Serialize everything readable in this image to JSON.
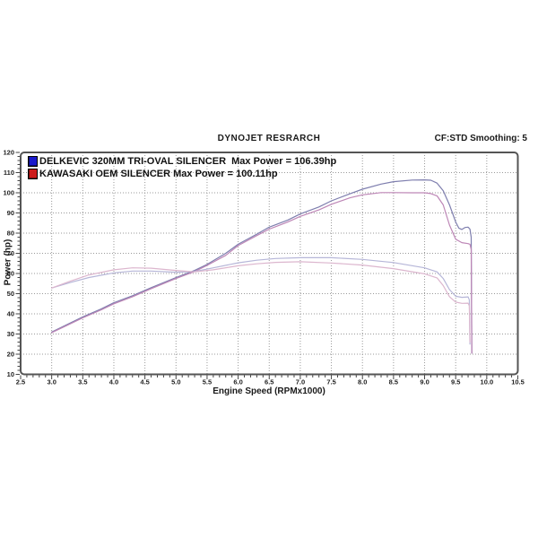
{
  "header": {
    "title": "DYNOJET RESRARCH",
    "smoothing_note": "CF:STD Smoothing: 5"
  },
  "legend": [
    {
      "label": "DELKEVIC 320MM TRI-OVAL SILENCER  Max Power = 106.39hp",
      "swatch_color": "#1a1acc"
    },
    {
      "label": "KAWASAKI OEM SILENCER Max Power = 100.11hp",
      "swatch_color": "#cc1a1a"
    }
  ],
  "chart_data": {
    "type": "line",
    "title": "DYNOJET RESRARCH",
    "xlabel": "Engine Speed (RPMx1000)",
    "ylabel": "Power (hp)",
    "xlim": [
      2.5,
      10.5
    ],
    "ylim": [
      10,
      120
    ],
    "x_major_step": 0.5,
    "x_minor_step": 0.1,
    "y_major_step": 10,
    "y_minor_step": 2,
    "x_tick_labels": [
      "2.5",
      "3.0",
      "3.5",
      "4.0",
      "4.5",
      "5.0",
      "5.5",
      "6.0",
      "6.5",
      "7.0",
      "7.5",
      "8.0",
      "8.5",
      "9.0",
      "9.5",
      "10.0",
      "10.5"
    ],
    "y_tick_labels": [
      "10",
      "20",
      "30",
      "40",
      "50",
      "60",
      "70",
      "80",
      "90",
      "100",
      "110",
      "120"
    ],
    "grid": "dotted",
    "legend_position": "top-left-inside",
    "grid_color": "#999999",
    "frame_color": "#555555",
    "series": [
      {
        "name": "DELKEVIC 320MM TRI-OVAL SILENCER",
        "trace": "power",
        "max_power_hp": 106.39,
        "color": "#7e7eae",
        "points": [
          [
            3.0,
            31
          ],
          [
            3.2,
            34
          ],
          [
            3.5,
            38.5
          ],
          [
            3.8,
            42.5
          ],
          [
            4.0,
            45.5
          ],
          [
            4.3,
            49
          ],
          [
            4.6,
            53
          ],
          [
            5.0,
            58
          ],
          [
            5.3,
            61.5
          ],
          [
            5.5,
            64.5
          ],
          [
            5.8,
            70
          ],
          [
            6.0,
            74.5
          ],
          [
            6.3,
            79.5
          ],
          [
            6.5,
            83
          ],
          [
            6.8,
            86.5
          ],
          [
            7.0,
            89.5
          ],
          [
            7.3,
            93
          ],
          [
            7.5,
            96
          ],
          [
            7.8,
            99.5
          ],
          [
            8.0,
            101.8
          ],
          [
            8.3,
            104.3
          ],
          [
            8.5,
            105.5
          ],
          [
            8.8,
            106.3
          ],
          [
            9.0,
            106.4
          ],
          [
            9.1,
            106.2
          ],
          [
            9.2,
            104.8
          ],
          [
            9.3,
            101
          ],
          [
            9.4,
            94
          ],
          [
            9.5,
            85.5
          ],
          [
            9.55,
            82.5
          ],
          [
            9.6,
            81.8
          ],
          [
            9.65,
            82.8
          ],
          [
            9.7,
            83
          ],
          [
            9.73,
            82
          ],
          [
            9.75,
            78
          ],
          [
            9.76,
            20.5
          ]
        ]
      },
      {
        "name": "KAWASAKI OEM SILENCER",
        "trace": "power",
        "max_power_hp": 100.11,
        "color": "#bd86b6",
        "points": [
          [
            3.0,
            30.7
          ],
          [
            3.2,
            33.6
          ],
          [
            3.5,
            38
          ],
          [
            3.8,
            42
          ],
          [
            4.0,
            45
          ],
          [
            4.3,
            48.5
          ],
          [
            4.6,
            52.5
          ],
          [
            5.0,
            57.5
          ],
          [
            5.3,
            61
          ],
          [
            5.5,
            64
          ],
          [
            5.8,
            69
          ],
          [
            6.0,
            73.8
          ],
          [
            6.3,
            78.8
          ],
          [
            6.5,
            82
          ],
          [
            6.8,
            85.5
          ],
          [
            7.0,
            88.3
          ],
          [
            7.3,
            91.5
          ],
          [
            7.5,
            94.3
          ],
          [
            7.8,
            97.5
          ],
          [
            8.0,
            99
          ],
          [
            8.3,
            100.1
          ],
          [
            8.5,
            100.1
          ],
          [
            8.8,
            100
          ],
          [
            9.0,
            100
          ],
          [
            9.1,
            99.6
          ],
          [
            9.2,
            98.5
          ],
          [
            9.3,
            94
          ],
          [
            9.4,
            84
          ],
          [
            9.5,
            77
          ],
          [
            9.6,
            75.3
          ],
          [
            9.7,
            74.8
          ],
          [
            9.73,
            74.5
          ],
          [
            9.75,
            72
          ],
          [
            9.76,
            20.5
          ]
        ]
      },
      {
        "name": "DELKEVIC 320MM TRI-OVAL SILENCER",
        "trace": "torque-lower-trace",
        "color": "#b6b6d8",
        "points": [
          [
            3.0,
            52.8
          ],
          [
            3.3,
            55.5
          ],
          [
            3.6,
            58
          ],
          [
            4.0,
            60.3
          ],
          [
            4.3,
            61.2
          ],
          [
            4.6,
            61.2
          ],
          [
            5.0,
            60.6
          ],
          [
            5.3,
            61
          ],
          [
            5.6,
            62.8
          ],
          [
            6.0,
            65.3
          ],
          [
            6.3,
            66.6
          ],
          [
            6.6,
            67.4
          ],
          [
            7.0,
            67.8
          ],
          [
            7.5,
            67.8
          ],
          [
            8.0,
            67
          ],
          [
            8.5,
            65.4
          ],
          [
            9.0,
            62.8
          ],
          [
            9.2,
            60.8
          ],
          [
            9.3,
            57.5
          ],
          [
            9.4,
            52
          ],
          [
            9.5,
            48.7
          ],
          [
            9.6,
            48.2
          ],
          [
            9.7,
            48.4
          ],
          [
            9.72,
            47
          ],
          [
            9.73,
            25
          ]
        ]
      },
      {
        "name": "KAWASAKI OEM SILENCER",
        "trace": "torque-lower-trace",
        "color": "#dcb6ce",
        "points": [
          [
            3.0,
            52.8
          ],
          [
            3.3,
            56.2
          ],
          [
            3.6,
            59.3
          ],
          [
            4.0,
            61.8
          ],
          [
            4.3,
            62.8
          ],
          [
            4.6,
            62.6
          ],
          [
            5.0,
            61.5
          ],
          [
            5.3,
            60.8
          ],
          [
            5.6,
            61.8
          ],
          [
            6.0,
            63.8
          ],
          [
            6.3,
            64.8
          ],
          [
            6.6,
            65.5
          ],
          [
            7.0,
            65.8
          ],
          [
            7.5,
            65.2
          ],
          [
            8.0,
            64.2
          ],
          [
            8.5,
            62.4
          ],
          [
            9.0,
            59.8
          ],
          [
            9.2,
            57.8
          ],
          [
            9.3,
            54
          ],
          [
            9.4,
            48.5
          ],
          [
            9.5,
            45.8
          ],
          [
            9.6,
            45.2
          ],
          [
            9.7,
            45.3
          ],
          [
            9.72,
            44
          ],
          [
            9.73,
            26
          ]
        ]
      }
    ]
  }
}
